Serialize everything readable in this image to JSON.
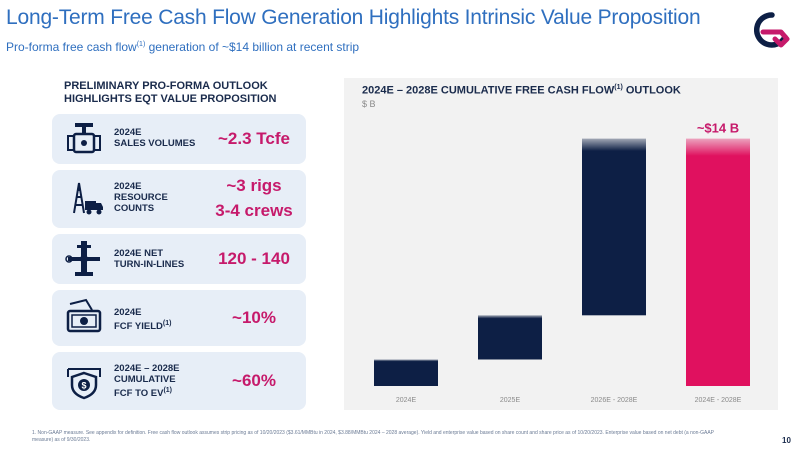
{
  "header": {
    "title": "Long-Term Free Cash Flow Generation Highlights Intrinsic Value Proposition",
    "subtitle_pre": "Pro-forma free cash flow",
    "subtitle_sup": "(1)",
    "subtitle_post": " generation of ~$14 billion at recent strip"
  },
  "left": {
    "heading": "PRELIMINARY PRO-FORMA OUTLOOK\nHIGHLIGHTS EQT VALUE PROPOSITION",
    "cards": [
      {
        "icon": "valve-icon",
        "label": "2024E\nSALES VOLUMES",
        "label_sup": "",
        "value": "~2.3 Tcfe",
        "value2": ""
      },
      {
        "icon": "drilling-rig-truck-icon",
        "label": "2024E\nRESOURCE\nCOUNTS",
        "label_sup": "",
        "value": "~3 rigs",
        "value2": "3-4 crews"
      },
      {
        "icon": "wellhead-icon",
        "label": "2024E NET\nTURN-IN-LINES",
        "label_sup": "",
        "value": "120 - 140",
        "value2": ""
      },
      {
        "icon": "cash-hand-icon",
        "label": "2024E\nFCF YIELD",
        "label_sup": "(1)",
        "value": "~10%",
        "value2": ""
      },
      {
        "icon": "shield-dollar-icon",
        "label": "2024E – 2028E\nCUMULATIVE\nFCF TO EV",
        "label_sup": "(1)",
        "value": "~60%",
        "value2": ""
      }
    ]
  },
  "chart": {
    "title_pre": "2024E – 2028E CUMULATIVE FREE CASH FLOW",
    "title_sup": "(1)",
    "title_post": " OUTLOOK",
    "unit": "$ B"
  },
  "chart_data": {
    "type": "bar",
    "subtype": "waterfall",
    "categories": [
      "2024E",
      "2025E",
      "2026E - 2028E",
      "2024E - 2028E"
    ],
    "bars": [
      {
        "category": "2024E",
        "start": 0,
        "end": 1.5,
        "color": "#0d1f45"
      },
      {
        "category": "2025E",
        "start": 1.5,
        "end": 4.0,
        "color": "#0d1f45"
      },
      {
        "category": "2026E - 2028E",
        "start": 4.0,
        "end": 14.0,
        "color": "#0d1f45"
      },
      {
        "category": "2024E - 2028E",
        "start": 0,
        "end": 14.0,
        "color": "#e0115f"
      }
    ],
    "data_labels": [
      {
        "category": "2024E - 2028E",
        "text": "~$14 B"
      }
    ],
    "ylim": [
      0,
      14.6
    ],
    "grid": false,
    "legend": "none"
  },
  "footer": {
    "footnote": "1. Non-GAAP measure. See appendix for definition. Free cash flow outlook assumes strip pricing as of 10/20/2023 ($3.61/MMBtu in 2024, $3.88/MMBtu 2024 – 2028 average). Yield and enterprise value based on share count and share price as of 10/20/2023. Enterprise value based on net debt (a non-GAAP measure) as of 9/30/2023.",
    "page": "10"
  },
  "colors": {
    "accent": "#c61a6b",
    "title_blue": "#2f6fbf",
    "navy": "#0d1f45",
    "card_bg": "#e7eef7",
    "panel_bg": "#f2f2f2"
  }
}
